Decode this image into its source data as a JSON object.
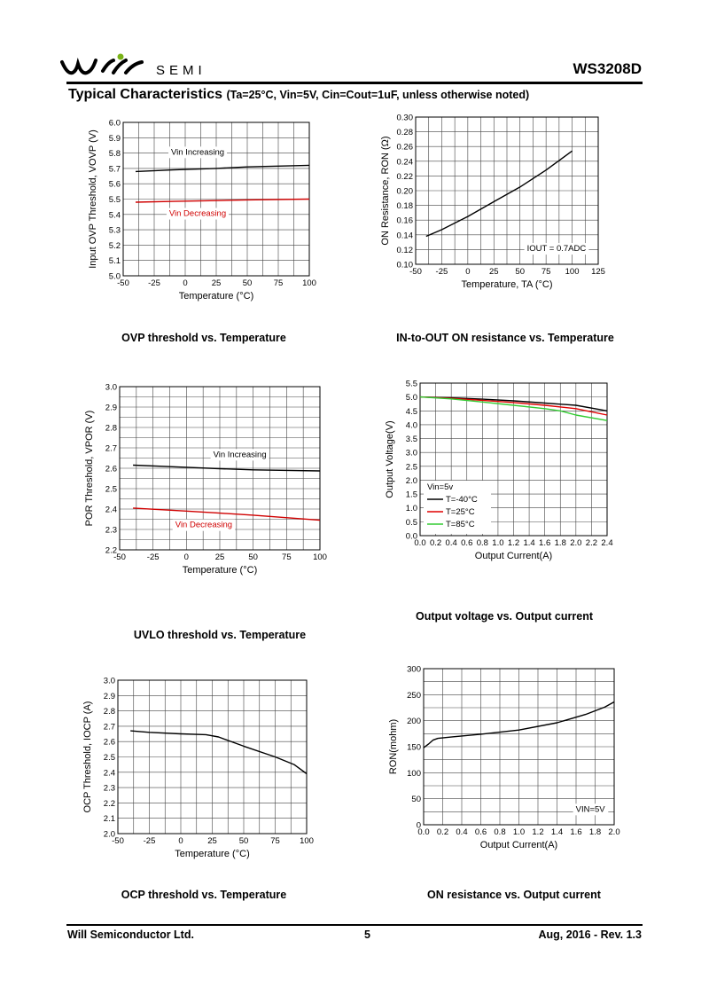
{
  "header": {
    "logo_text": "SEMI",
    "part_number": "WS3208D",
    "section_title": "Typical Characteristics",
    "section_conditions": "(Ta=25°C, Vin=5V, Cin=Cout=1uF, unless otherwise noted)"
  },
  "footer": {
    "company": "Will Semiconductor Ltd.",
    "page": "5",
    "date_rev": "Aug, 2016 - Rev. 1.3"
  },
  "chart_data": [
    {
      "id": "ovp",
      "type": "line",
      "caption": "OVP threshold vs. Temperature",
      "xlabel": "Temperature (°C)",
      "ylabel": "Input OVP Threshold, VOVP (V)",
      "xlim": [
        -50,
        100
      ],
      "ylim": [
        5.0,
        6.0
      ],
      "x_ticks": [
        -50,
        -25,
        0,
        25,
        50,
        75,
        100
      ],
      "y_ticks": [
        "5.0",
        "5.1",
        "5.2",
        "5.3",
        "5.4",
        "5.5",
        "5.6",
        "5.7",
        "5.8",
        "5.9",
        "6.0"
      ],
      "grid": true,
      "series": [
        {
          "name": "Vin Increasing",
          "color": "#000000",
          "x": [
            -40,
            -10,
            25,
            50,
            100
          ],
          "y": [
            5.68,
            5.69,
            5.7,
            5.71,
            5.72
          ]
        },
        {
          "name": "Vin Decreasing",
          "color": "#d00000",
          "x": [
            -40,
            -10,
            25,
            50,
            100
          ],
          "y": [
            5.48,
            5.485,
            5.49,
            5.495,
            5.5
          ]
        }
      ],
      "annotations": [
        {
          "text": "Vin Increasing",
          "x": 10,
          "y": 5.79
        },
        {
          "text": "Vin Decreasing",
          "x": 10,
          "y": 5.39,
          "color": "#d00000"
        }
      ]
    },
    {
      "id": "ron_temp",
      "type": "line",
      "caption": "IN-to-OUT ON resistance vs. Temperature",
      "xlabel": "Temperature, TA (°C)",
      "ylabel": "ON Resistance, RON (Ω)",
      "xlim": [
        -50,
        125
      ],
      "ylim": [
        0.1,
        0.3
      ],
      "x_ticks": [
        -50,
        -25,
        0,
        25,
        50,
        75,
        100,
        125
      ],
      "y_ticks": [
        "0.10",
        "0.12",
        "0.14",
        "0.16",
        "0.18",
        "0.20",
        "0.22",
        "0.24",
        "0.26",
        "0.28",
        "0.30"
      ],
      "grid": true,
      "series": [
        {
          "name": "",
          "color": "#000000",
          "x": [
            -40,
            -25,
            0,
            25,
            50,
            75,
            100
          ],
          "y": [
            0.138,
            0.147,
            0.165,
            0.185,
            0.205,
            0.228,
            0.254
          ]
        }
      ],
      "annotations": [
        {
          "text": "IOUT = 0.7ADC",
          "x": 85,
          "y": 0.118
        }
      ]
    },
    {
      "id": "uvlo",
      "type": "line",
      "caption": "UVLO threshold vs. Temperature",
      "xlabel": "Temperature (°C)",
      "ylabel": "POR Threshold, VPOR (V)",
      "xlim": [
        -50,
        100
      ],
      "ylim": [
        2.2,
        3.0
      ],
      "x_ticks": [
        -50,
        -25,
        0,
        25,
        50,
        75,
        100
      ],
      "y_ticks": [
        "2.2",
        "2.3",
        "2.4",
        "2.5",
        "2.6",
        "2.7",
        "2.8",
        "2.9",
        "3.0"
      ],
      "grid": true,
      "series": [
        {
          "name": "Vin Increasing",
          "color": "#000000",
          "x": [
            -40,
            0,
            25,
            50,
            100
          ],
          "y": [
            2.615,
            2.605,
            2.598,
            2.592,
            2.587
          ]
        },
        {
          "name": "Vin Decreasing",
          "color": "#d00000",
          "x": [
            -40,
            0,
            25,
            50,
            100
          ],
          "y": [
            2.405,
            2.39,
            2.38,
            2.37,
            2.345
          ]
        }
      ],
      "annotations": [
        {
          "text": "Vin Increasing",
          "x": 40,
          "y": 2.655
        },
        {
          "text": "Vin Decreasing",
          "x": 13,
          "y": 2.31,
          "color": "#d00000"
        }
      ]
    },
    {
      "id": "vout_iout",
      "type": "line",
      "caption": "Output voltage vs. Output current",
      "xlabel": "Output Current(A)",
      "ylabel": "Output Voltage(V)",
      "xlim": [
        0,
        2.4
      ],
      "ylim": [
        0,
        5.5
      ],
      "x_ticks": [
        "0.0",
        "0.2",
        "0.4",
        "0.6",
        "0.8",
        "1.0",
        "1.2",
        "1.4",
        "1.6",
        "1.8",
        "2.0",
        "2.2",
        "2.4"
      ],
      "y_ticks": [
        "0.0",
        "0.5",
        "1.0",
        "1.5",
        "2.0",
        "2.5",
        "3.0",
        "3.5",
        "4.0",
        "4.5",
        "5.0",
        "5.5"
      ],
      "grid": true,
      "legend_title": "Vin=5v",
      "series": [
        {
          "name": "T=-40°C",
          "color": "#000000",
          "x": [
            0,
            0.4,
            0.8,
            1.2,
            1.6,
            2.0,
            2.4
          ],
          "y": [
            5.0,
            4.97,
            4.92,
            4.86,
            4.78,
            4.7,
            4.5
          ]
        },
        {
          "name": "T=25°C",
          "color": "#e00000",
          "x": [
            0,
            0.4,
            0.8,
            1.2,
            1.6,
            2.0,
            2.4
          ],
          "y": [
            5.0,
            4.95,
            4.88,
            4.8,
            4.7,
            4.58,
            4.35
          ]
        },
        {
          "name": "T=85°C",
          "color": "#33cc33",
          "x": [
            0,
            0.4,
            0.8,
            1.2,
            1.6,
            1.8,
            2.0,
            2.4
          ],
          "y": [
            5.0,
            4.93,
            4.82,
            4.7,
            4.58,
            4.5,
            4.35,
            4.15
          ]
        }
      ]
    },
    {
      "id": "ocp",
      "type": "line",
      "caption": "OCP threshold vs. Temperature",
      "xlabel": "Temperature (°C)",
      "ylabel": "OCP Threshold, IOCP (A)",
      "xlim": [
        -50,
        100
      ],
      "ylim": [
        2.0,
        3.0
      ],
      "x_ticks": [
        -50,
        -25,
        0,
        25,
        50,
        75,
        100
      ],
      "y_ticks": [
        "2.0",
        "2.1",
        "2.2",
        "2.3",
        "2.4",
        "2.5",
        "2.6",
        "2.7",
        "2.8",
        "2.9",
        "3.0"
      ],
      "grid": true,
      "series": [
        {
          "name": "",
          "color": "#000000",
          "x": [
            -40,
            -25,
            0,
            20,
            30,
            50,
            75,
            90,
            100
          ],
          "y": [
            2.67,
            2.66,
            2.65,
            2.645,
            2.63,
            2.57,
            2.5,
            2.45,
            2.39
          ]
        }
      ]
    },
    {
      "id": "ron_iout",
      "type": "line",
      "caption": "ON resistance vs. Output current",
      "xlabel": "Output Current(A)",
      "ylabel": "RON(mohm)",
      "xlim": [
        0,
        2.0
      ],
      "ylim": [
        0,
        300
      ],
      "x_ticks": [
        "0.0",
        "0.2",
        "0.4",
        "0.6",
        "0.8",
        "1.0",
        "1.2",
        "1.4",
        "1.6",
        "1.8",
        "2.0"
      ],
      "y_ticks": [
        "0",
        "50",
        "100",
        "150",
        "200",
        "250",
        "300"
      ],
      "grid": true,
      "series": [
        {
          "name": "",
          "color": "#000000",
          "x": [
            0,
            0.05,
            0.1,
            0.15,
            0.3,
            0.6,
            1.0,
            1.4,
            1.7,
            1.9,
            2.0
          ],
          "y": [
            148,
            155,
            163,
            166,
            169,
            174,
            182,
            196,
            212,
            226,
            236
          ]
        }
      ],
      "annotations": [
        {
          "text": "VIN=5V",
          "x": 1.75,
          "y": 25
        }
      ]
    }
  ]
}
